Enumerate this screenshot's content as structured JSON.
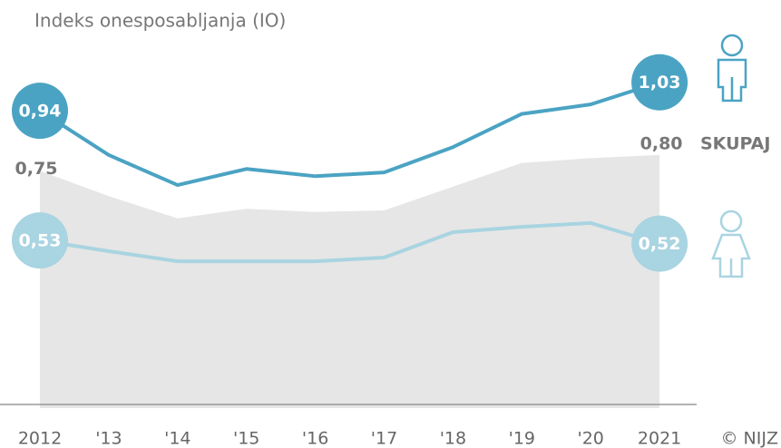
{
  "chart_data": {
    "type": "line",
    "title": "Indeks onesposabljanja (IO)",
    "source": "© NIJZ",
    "categories": [
      "2012",
      "'13",
      "'14",
      "'15",
      "'16",
      "'17",
      "'18",
      "'19",
      "'20",
      "2021"
    ],
    "ylim": [
      0,
      1.29
    ],
    "area": {
      "name": "SKUPAJ",
      "color": "#e6e6e6",
      "values": [
        0.75,
        0.67,
        0.6,
        0.63,
        0.62,
        0.625,
        0.7,
        0.775,
        0.79,
        0.8
      ],
      "value_labels": [
        "0,75",
        null,
        null,
        null,
        null,
        null,
        null,
        null,
        null,
        "0,80"
      ]
    },
    "series": [
      {
        "color": "#4ba3c3",
        "values": [
          0.94,
          0.8,
          0.705,
          0.756,
          0.733,
          0.745,
          0.825,
          0.93,
          0.96,
          1.03
        ],
        "value_labels": [
          "0,94",
          null,
          null,
          null,
          null,
          null,
          null,
          null,
          null,
          "1,03"
        ]
      },
      {
        "color": "#a9d4e1",
        "values": [
          0.53,
          0.496,
          0.464,
          0.464,
          0.464,
          0.476,
          0.556,
          0.573,
          0.585,
          0.52
        ],
        "value_labels": [
          "0,53",
          null,
          null,
          null,
          null,
          null,
          null,
          null,
          null,
          "0,52"
        ]
      }
    ]
  }
}
